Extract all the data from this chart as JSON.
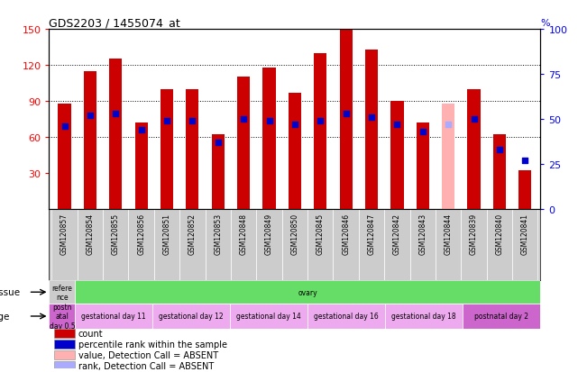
{
  "title": "GDS2203 / 1455074_at",
  "samples": [
    "GSM120857",
    "GSM120854",
    "GSM120855",
    "GSM120856",
    "GSM120851",
    "GSM120852",
    "GSM120853",
    "GSM120848",
    "GSM120849",
    "GSM120850",
    "GSM120845",
    "GSM120846",
    "GSM120847",
    "GSM120842",
    "GSM120843",
    "GSM120844",
    "GSM120839",
    "GSM120840",
    "GSM120841"
  ],
  "count_values": [
    88,
    115,
    125,
    72,
    100,
    100,
    62,
    110,
    118,
    97,
    130,
    150,
    133,
    90,
    72,
    88,
    100,
    62,
    32
  ],
  "count_absent": [
    false,
    false,
    false,
    false,
    false,
    false,
    false,
    false,
    false,
    false,
    false,
    false,
    false,
    false,
    false,
    true,
    false,
    false,
    false
  ],
  "percentile_values": [
    46,
    52,
    53,
    44,
    49,
    49,
    37,
    50,
    49,
    47,
    49,
    53,
    51,
    47,
    43,
    47,
    50,
    33,
    27
  ],
  "percentile_absent": [
    false,
    false,
    false,
    false,
    false,
    false,
    false,
    false,
    false,
    false,
    false,
    false,
    false,
    false,
    false,
    true,
    false,
    false,
    false
  ],
  "ylim_left": [
    0,
    150
  ],
  "ylim_right": [
    0,
    100
  ],
  "yticks_left": [
    30,
    60,
    90,
    120,
    150
  ],
  "yticks_right": [
    0,
    25,
    50,
    75,
    100
  ],
  "bar_color_normal": "#cc0000",
  "bar_color_absent": "#ffb0b0",
  "dot_color_normal": "#0000cc",
  "dot_color_absent": "#aaaaff",
  "bar_width": 0.5,
  "dot_size": 14,
  "bg_color": "#ffffff",
  "plot_bg": "#ffffff",
  "xticklabel_bg": "#cccccc",
  "tissue_row": [
    {
      "label": "refere\nnce",
      "color": "#cccccc",
      "span": 1
    },
    {
      "label": "ovary",
      "color": "#66dd66",
      "span": 18
    }
  ],
  "age_row": [
    {
      "label": "postn\natal\nday 0.5",
      "color": "#cc66cc",
      "span": 1
    },
    {
      "label": "gestational day 11",
      "color": "#eeaaee",
      "span": 3
    },
    {
      "label": "gestational day 12",
      "color": "#eeaaee",
      "span": 3
    },
    {
      "label": "gestational day 14",
      "color": "#eeaaee",
      "span": 3
    },
    {
      "label": "gestational day 16",
      "color": "#eeaaee",
      "span": 3
    },
    {
      "label": "gestational day 18",
      "color": "#eeaaee",
      "span": 3
    },
    {
      "label": "postnatal day 2",
      "color": "#cc66cc",
      "span": 3
    }
  ],
  "tissue_label": "tissue",
  "age_label": "age",
  "legend": [
    {
      "label": "count",
      "color": "#cc0000"
    },
    {
      "label": "percentile rank within the sample",
      "color": "#0000cc"
    },
    {
      "label": "value, Detection Call = ABSENT",
      "color": "#ffb0b0"
    },
    {
      "label": "rank, Detection Call = ABSENT",
      "color": "#aaaaff"
    }
  ]
}
